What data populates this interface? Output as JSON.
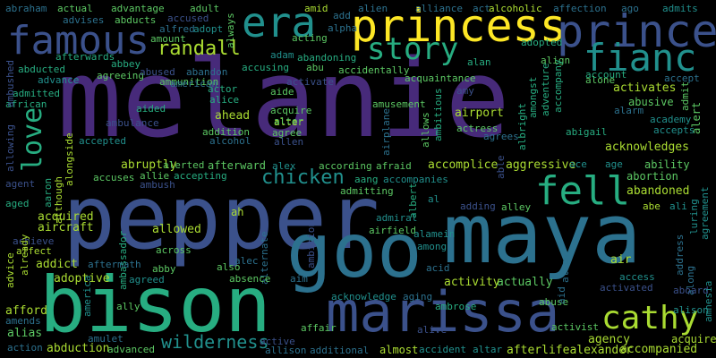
{
  "colors": {
    "background": "#000000",
    "palette": [
      "#440154",
      "#472a7a",
      "#3b518b",
      "#2c718e",
      "#21908d",
      "#27ad81",
      "#5cc863",
      "#aadc32",
      "#fde725"
    ]
  },
  "words": [
    {
      "text": "melanie",
      "c": 1
    },
    {
      "text": "pepper",
      "c": 2
    },
    {
      "text": "maya",
      "c": 3
    },
    {
      "text": "goo",
      "c": 3
    },
    {
      "text": "bison",
      "c": 5
    },
    {
      "text": "marissa",
      "c": 2
    },
    {
      "text": "princess",
      "c": 8
    },
    {
      "text": "prince",
      "c": 2
    },
    {
      "text": "famous",
      "c": 2
    },
    {
      "text": "era",
      "c": 4
    },
    {
      "text": "fianc",
      "c": 4
    },
    {
      "text": "fell",
      "c": 5
    },
    {
      "text": "story",
      "c": 5
    },
    {
      "text": "cathy",
      "c": 7
    },
    {
      "text": "love",
      "c": 5
    },
    {
      "text": "randall",
      "c": 7
    },
    {
      "text": "chicken",
      "c": 4
    },
    {
      "text": "wilderness",
      "c": 4
    },
    {
      "text": "airport",
      "c": 7
    },
    {
      "text": "abandoned",
      "c": 7
    },
    {
      "text": "acknowledges",
      "c": 7
    },
    {
      "text": "aggressive",
      "c": 7
    },
    {
      "text": "accomplice",
      "c": 7
    },
    {
      "text": "afterlifealexander",
      "c": 7
    },
    {
      "text": "agency",
      "c": 7
    },
    {
      "text": "air",
      "c": 7
    },
    {
      "text": "activates",
      "c": 7
    },
    {
      "text": "abruptly",
      "c": 7
    },
    {
      "text": "ahead",
      "c": 7
    },
    {
      "text": "allowed",
      "c": 7
    },
    {
      "text": "acquired",
      "c": 7
    },
    {
      "text": "aircraft",
      "c": 7
    },
    {
      "text": "addict",
      "c": 7
    },
    {
      "text": "adoptive",
      "c": 7
    },
    {
      "text": "afford",
      "c": 7
    },
    {
      "text": "abduction",
      "c": 7
    },
    {
      "text": "alias",
      "c": 6
    },
    {
      "text": "actually",
      "c": 6
    },
    {
      "text": "activity",
      "c": 7
    },
    {
      "text": "accompanied",
      "c": 7
    },
    {
      "text": "acquires",
      "c": 7
    },
    {
      "text": "almost",
      "c": 7
    },
    {
      "text": "ah",
      "c": 7
    },
    {
      "text": "afterward",
      "c": 6
    },
    {
      "text": "ability",
      "c": 6
    },
    {
      "text": "abortion",
      "c": 6
    },
    {
      "text": "alert",
      "c": 6
    },
    {
      "text": "abusive",
      "c": 6
    },
    {
      "text": "admit",
      "c": 6
    },
    {
      "text": "adult",
      "c": 6
    },
    {
      "text": "advantage",
      "c": 6
    },
    {
      "text": "alcoholic",
      "c": 7
    },
    {
      "text": "afraid",
      "c": 6
    },
    {
      "text": "admitting",
      "c": 6
    },
    {
      "text": "alter",
      "c": 7
    },
    {
      "text": "addition",
      "c": 6
    },
    {
      "text": "acquire",
      "c": 6
    },
    {
      "text": "agree",
      "c": 6
    },
    {
      "text": "alter",
      "c": 6
    },
    {
      "text": "allows",
      "c": 6
    },
    {
      "text": "actress",
      "c": 6
    },
    {
      "text": "ambitious",
      "c": 5
    },
    {
      "text": "albert",
      "c": 5
    },
    {
      "text": "amusement",
      "c": 6
    },
    {
      "text": "aide",
      "c": 6
    },
    {
      "text": "alone",
      "c": 6
    },
    {
      "text": "account",
      "c": 5
    },
    {
      "text": "abigail",
      "c": 5
    },
    {
      "text": "academy",
      "c": 4
    },
    {
      "text": "accepts",
      "c": 4
    },
    {
      "text": "accept",
      "c": 3
    },
    {
      "text": "abbey",
      "c": 5
    },
    {
      "text": "agreeing",
      "c": 6
    },
    {
      "text": "ammunition",
      "c": 6
    },
    {
      "text": "advance",
      "c": 4
    },
    {
      "text": "abducted",
      "c": 5
    },
    {
      "text": "admitted",
      "c": 5
    },
    {
      "text": "african",
      "c": 5
    },
    {
      "text": "afterwards",
      "c": 5
    },
    {
      "text": "abraham",
      "c": 3
    },
    {
      "text": "actual",
      "c": 6
    },
    {
      "text": "advises",
      "c": 3
    },
    {
      "text": "abducts",
      "c": 6
    },
    {
      "text": "alfred",
      "c": 3
    },
    {
      "text": "accused",
      "c": 2
    },
    {
      "text": "adopt",
      "c": 4
    },
    {
      "text": "amount",
      "c": 6
    },
    {
      "text": "american",
      "c": 3
    },
    {
      "text": "abandon",
      "c": 3
    },
    {
      "text": "abused",
      "c": 2
    },
    {
      "text": "alliance",
      "c": 3
    },
    {
      "text": "act",
      "c": 3
    },
    {
      "text": "affection",
      "c": 3
    },
    {
      "text": "ago",
      "c": 3
    },
    {
      "text": "admits",
      "c": 4
    },
    {
      "text": "amid",
      "c": 7
    },
    {
      "text": "alien",
      "c": 3
    },
    {
      "text": "add",
      "c": 3
    },
    {
      "text": "alpha",
      "c": 3
    },
    {
      "text": "adam",
      "c": 4
    },
    {
      "text": "abandoning",
      "c": 5
    },
    {
      "text": "accusing",
      "c": 5
    },
    {
      "text": "acting",
      "c": 6
    },
    {
      "text": "abu",
      "c": 6
    },
    {
      "text": "accidentally",
      "c": 6
    },
    {
      "text": "adopted",
      "c": 5
    },
    {
      "text": "alan",
      "c": 5
    },
    {
      "text": "align",
      "c": 6
    },
    {
      "text": "acquaintance",
      "c": 6
    },
    {
      "text": "amy",
      "c": 2
    },
    {
      "text": "activate",
      "c": 2
    },
    {
      "text": "actor",
      "c": 5
    },
    {
      "text": "alice",
      "c": 5
    },
    {
      "text": "aided",
      "c": 5
    },
    {
      "text": "ambulance",
      "c": 2
    },
    {
      "text": "alcohol",
      "c": 3
    },
    {
      "text": "allen",
      "c": 2
    },
    {
      "text": "accepted",
      "c": 4
    },
    {
      "text": "alerted",
      "c": 6
    },
    {
      "text": "alex",
      "c": 4
    },
    {
      "text": "according",
      "c": 6
    },
    {
      "text": "accuses",
      "c": 6
    },
    {
      "text": "allie",
      "c": 6
    },
    {
      "text": "accepting",
      "c": 5
    },
    {
      "text": "ambush",
      "c": 2
    },
    {
      "text": "aang",
      "c": 5
    },
    {
      "text": "accompanies",
      "c": 4
    },
    {
      "text": "ace",
      "c": 4
    },
    {
      "text": "age",
      "c": 4
    },
    {
      "text": "agent",
      "c": 2
    },
    {
      "text": "aged",
      "c": 5
    },
    {
      "text": "aaron",
      "c": 5
    },
    {
      "text": "although",
      "c": 7
    },
    {
      "text": "alongside",
      "c": 7
    },
    {
      "text": "allowing",
      "c": 2
    },
    {
      "text": "ambassador",
      "c": 5
    },
    {
      "text": "alternate",
      "c": 3
    },
    {
      "text": "ambition",
      "c": 2
    },
    {
      "text": "airplane",
      "c": 3
    },
    {
      "text": "albright",
      "c": 5
    },
    {
      "text": "amongst",
      "c": 5
    },
    {
      "text": "adventure",
      "c": 5
    },
    {
      "text": "accompany",
      "c": 5
    },
    {
      "text": "agrees",
      "c": 3
    },
    {
      "text": "airfield",
      "c": 6
    },
    {
      "text": "admiral",
      "c": 4
    },
    {
      "text": "alamein",
      "c": 4
    },
    {
      "text": "among",
      "c": 4
    },
    {
      "text": "al",
      "c": 4
    },
    {
      "text": "adding",
      "c": 2
    },
    {
      "text": "alley",
      "c": 6
    },
    {
      "text": "able",
      "c": 2
    },
    {
      "text": "abe",
      "c": 7
    },
    {
      "text": "ali",
      "c": 4
    },
    {
      "text": "luring",
      "c": 4
    },
    {
      "text": "agreement",
      "c": 4
    },
    {
      "text": "achieve",
      "c": 2
    },
    {
      "text": "affect",
      "c": 7
    },
    {
      "text": "already",
      "c": 7
    },
    {
      "text": "advice",
      "c": 7
    },
    {
      "text": "amends",
      "c": 3
    },
    {
      "text": "action",
      "c": 3
    },
    {
      "text": "amulet",
      "c": 3
    },
    {
      "text": "advanced",
      "c": 6
    },
    {
      "text": "america",
      "c": 4
    },
    {
      "text": "ally",
      "c": 6
    },
    {
      "text": "aftermath",
      "c": 3
    },
    {
      "text": "abby",
      "c": 6
    },
    {
      "text": "agreed",
      "c": 4
    },
    {
      "text": "across",
      "c": 6
    },
    {
      "text": "alec",
      "c": 3
    },
    {
      "text": "also",
      "c": 6
    },
    {
      "text": "absence",
      "c": 6
    },
    {
      "text": "aim",
      "c": 3
    },
    {
      "text": "acid",
      "c": 3
    },
    {
      "text": "acknowledge",
      "c": 4
    },
    {
      "text": "aging",
      "c": 3
    },
    {
      "text": "ambrose",
      "c": 5
    },
    {
      "text": "abuse",
      "c": 6
    },
    {
      "text": "activist",
      "c": 6
    },
    {
      "text": "aid",
      "c": 3
    },
    {
      "text": "allow",
      "c": 3
    },
    {
      "text": "access",
      "c": 4
    },
    {
      "text": "activated",
      "c": 2
    },
    {
      "text": "address",
      "c": 3
    },
    {
      "text": "along",
      "c": 3
    },
    {
      "text": "aboard",
      "c": 2
    },
    {
      "text": "alison",
      "c": 4
    },
    {
      "text": "active",
      "c": 2
    },
    {
      "text": "affair",
      "c": 6
    },
    {
      "text": "allison",
      "c": 3
    },
    {
      "text": "additional",
      "c": 3
    },
    {
      "text": "alive",
      "c": 2
    },
    {
      "text": "accident",
      "c": 4
    },
    {
      "text": "altar",
      "c": 4
    },
    {
      "text": "amnesia",
      "c": 4
    },
    {
      "text": "alarm",
      "c": 3
    },
    {
      "text": "ambushed",
      "c": 2
    },
    {
      "text": "always",
      "c": 6
    }
  ]
}
